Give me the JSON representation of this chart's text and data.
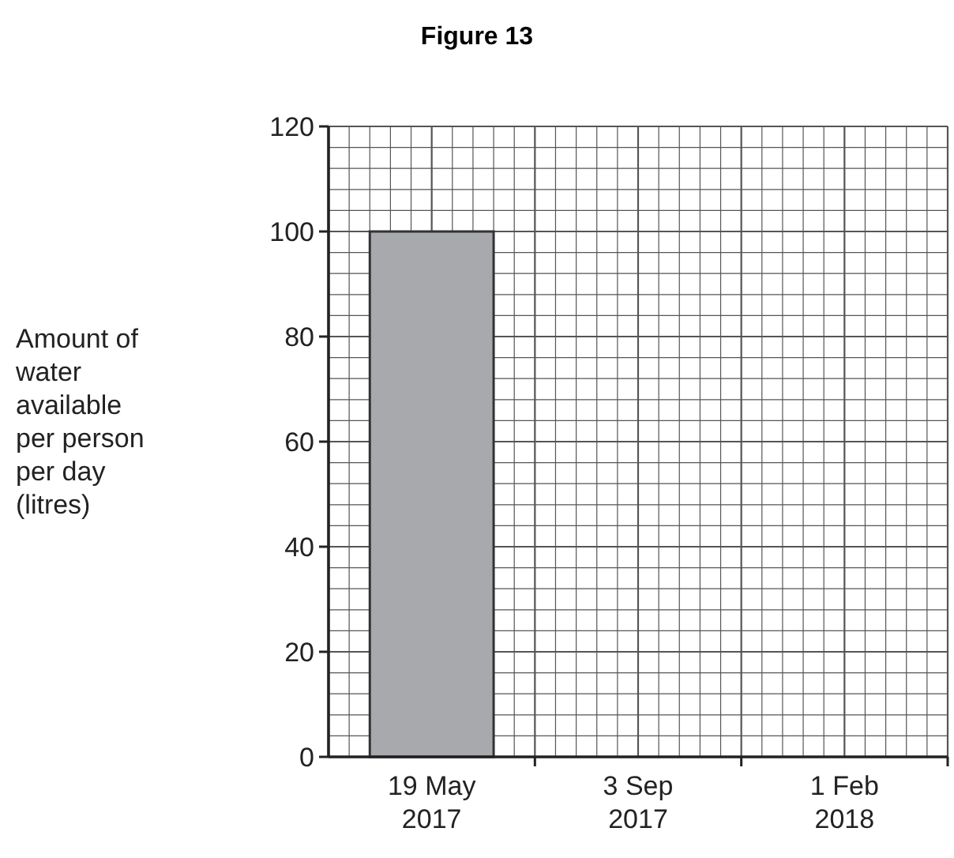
{
  "chart_data": {
    "type": "bar",
    "title": "Figure 13",
    "ylabel": "Amount of water available per person per day (litres)",
    "categories": [
      "19 May 2017",
      "3 Sep 2017",
      "1 Feb 2018"
    ],
    "values": [
      100,
      null,
      null
    ],
    "color": "#a7a9ac",
    "ylim": [
      0,
      120
    ],
    "yticks": [
      0,
      20,
      40,
      60,
      80,
      100,
      120
    ],
    "grid": true
  }
}
